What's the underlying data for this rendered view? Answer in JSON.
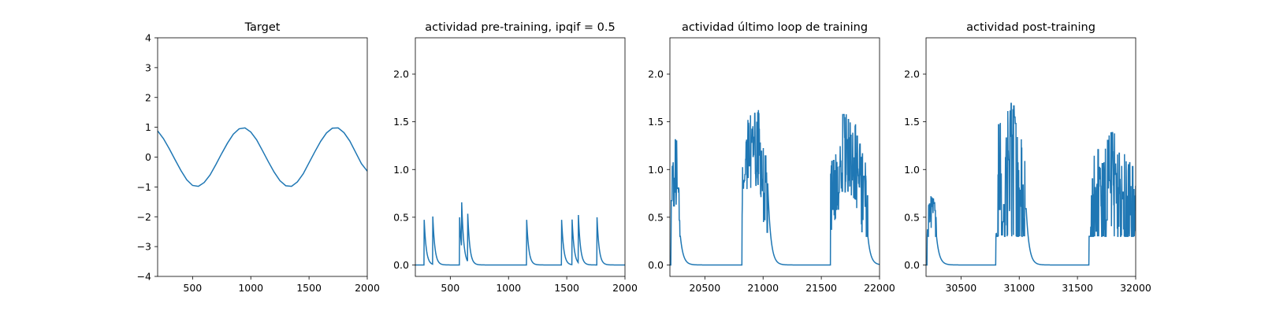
{
  "figure": {
    "background": "#ffffff"
  },
  "chart_data": [
    {
      "type": "line",
      "title": "Target",
      "xlabel": "",
      "ylabel": "",
      "xlim": [
        200,
        2000
      ],
      "ylim": [
        -4,
        4
      ],
      "xticks": [
        500,
        1000,
        1500,
        2000
      ],
      "yticks": [
        -4,
        -3,
        -2,
        -1,
        0,
        1,
        2,
        3,
        4
      ],
      "grid": false,
      "color": "#1f77b4",
      "series": [
        {
          "x": [
            200,
            250,
            300,
            350,
            400,
            450,
            500,
            550,
            600,
            650,
            700,
            750,
            800,
            850,
            900,
            950,
            1000,
            1050,
            1100,
            1150,
            1200,
            1250,
            1300,
            1350,
            1400,
            1450,
            1500,
            1550,
            1600,
            1650,
            1700,
            1750,
            1800,
            1850,
            1900,
            1950,
            2000
          ],
          "y": [
            0.88,
            0.62,
            0.28,
            -0.09,
            -0.45,
            -0.76,
            -0.95,
            -0.98,
            -0.85,
            -0.6,
            -0.25,
            0.12,
            0.47,
            0.77,
            0.95,
            0.98,
            0.84,
            0.58,
            0.22,
            -0.15,
            -0.5,
            -0.79,
            -0.96,
            -0.98,
            -0.83,
            -0.56,
            -0.19,
            0.18,
            0.53,
            0.81,
            0.97,
            0.98,
            0.82,
            0.54,
            0.16,
            -0.22,
            -0.47
          ]
        }
      ]
    },
    {
      "type": "line",
      "title": "actividad pre-training, ipqif = 0.5",
      "xlabel": "",
      "ylabel": "",
      "xlim": [
        200,
        2000
      ],
      "ylim": [
        -0.12,
        2.38
      ],
      "xticks": [
        500,
        1000,
        1500,
        2000
      ],
      "yticks": [
        0.0,
        0.5,
        1.0,
        1.5,
        2.0
      ],
      "ytick_labels": [
        "0.0",
        "0.5",
        "1.0",
        "1.5",
        "2.0"
      ],
      "grid": false,
      "color": "#1f77b4",
      "spike_times": [
        275,
        350,
        580,
        597,
        650,
        1155,
        1455,
        1545,
        1600,
        1760
      ],
      "spike_amplitude": 0.5,
      "decay": 18
    },
    {
      "type": "line",
      "title": "actividad último loop de training",
      "xlabel": "",
      "ylabel": "",
      "xlim": [
        20200,
        22000
      ],
      "ylim": [
        -0.12,
        2.38
      ],
      "xticks": [
        20500,
        21000,
        21500,
        22000
      ],
      "yticks": [
        0.0,
        0.5,
        1.0,
        1.5,
        2.0
      ],
      "ytick_labels": [
        "0.0",
        "0.5",
        "1.0",
        "1.5",
        "2.0"
      ],
      "grid": false,
      "color": "#1f77b4",
      "bursts": [
        {
          "x_start": 20210,
          "x_end": 20290,
          "peak": 1.43,
          "mean": 0.95
        },
        {
          "x_start": 20820,
          "x_end": 21040,
          "peak": 1.8,
          "mean": 1.3
        },
        {
          "x_start": 21580,
          "x_end": 21900,
          "peak": 1.7,
          "mean": 1.2
        }
      ],
      "decay": 25
    },
    {
      "type": "line",
      "title": "actividad post-training",
      "xlabel": "",
      "ylabel": "",
      "xlim": [
        30200,
        32000
      ],
      "ylim": [
        -0.12,
        2.38
      ],
      "xticks": [
        30500,
        31000,
        31500,
        32000
      ],
      "yticks": [
        0.0,
        0.5,
        1.0,
        1.5,
        2.0
      ],
      "ytick_labels": [
        "0.0",
        "0.5",
        "1.0",
        "1.5",
        "2.0"
      ],
      "grid": false,
      "color": "#1f77b4",
      "bursts": [
        {
          "x_start": 30210,
          "x_end": 30290,
          "peak": 0.83,
          "mean": 0.55
        },
        {
          "x_start": 30800,
          "x_end": 31060,
          "peak": 1.86,
          "mean": 0.85
        },
        {
          "x_start": 31600,
          "x_end": 32000,
          "peak": 1.5,
          "mean": 0.8
        }
      ],
      "decay": 25
    }
  ]
}
